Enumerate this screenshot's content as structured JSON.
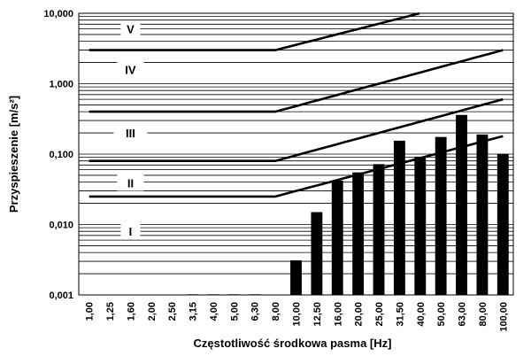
{
  "chart_data": {
    "type": "bar",
    "xlabel": "Częstotliwość środkowa pasma [Hz]",
    "ylabel": "Przyspieszenie [m/s²]",
    "yscale": "log",
    "ylim": [
      0.001,
      10
    ],
    "grid": true,
    "y_ticks": [
      {
        "value": 0.001,
        "label": "0,001"
      },
      {
        "value": 0.01,
        "label": "0,010"
      },
      {
        "value": 0.1,
        "label": "0,100"
      },
      {
        "value": 1,
        "label": "1,000"
      },
      {
        "value": 10,
        "label": "10,000"
      }
    ],
    "categories": [
      "1,00",
      "1,25",
      "1,60",
      "2,00",
      "2,50",
      "3,15",
      "4,00",
      "5,00",
      "6,30",
      "8,00",
      "10,00",
      "12,50",
      "16,00",
      "20,00",
      "25,00",
      "31,50",
      "40,00",
      "50,00",
      "63,00",
      "80,00",
      "100,00"
    ],
    "values": [
      null,
      null,
      null,
      null,
      null,
      0.00102,
      0.00102,
      0.00102,
      0.00102,
      null,
      0.0031,
      0.015,
      0.042,
      0.055,
      0.072,
      0.155,
      0.092,
      0.175,
      0.36,
      0.19,
      0.101
    ],
    "limit_curves": [
      {
        "zone_boundary": "I/II",
        "flat_value": 0.025,
        "break_category": "8,00",
        "end_value": 0.18
      },
      {
        "zone_boundary": "II/III",
        "flat_value": 0.08,
        "break_category": "8,00",
        "end_value": 0.6
      },
      {
        "zone_boundary": "III/IV",
        "flat_value": 0.4,
        "break_category": "8,00",
        "end_value": 3.0
      },
      {
        "zone_boundary": "IV/V",
        "flat_value": 3.0,
        "break_category": "8,00",
        "end_value": 20.0
      }
    ],
    "zone_labels": [
      {
        "label": "I",
        "value": 0.008
      },
      {
        "label": "II",
        "value": 0.039
      },
      {
        "label": "III",
        "value": 0.2
      },
      {
        "label": "IV",
        "value": 1.6
      },
      {
        "label": "V",
        "value": 6.0
      }
    ]
  }
}
